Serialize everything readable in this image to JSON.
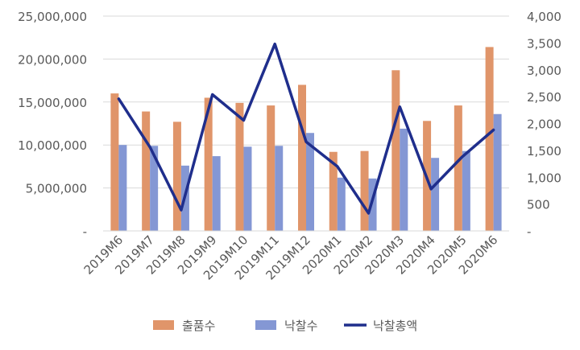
{
  "chart_data": {
    "type": "bar",
    "title": "",
    "xlabel": "",
    "ylabel": "",
    "categories": [
      "2019M6",
      "2019M7",
      "2019M8",
      "2019M9",
      "2019M10",
      "2019M11",
      "2019M12",
      "2020M1",
      "2020M2",
      "2020M3",
      "2020M4",
      "2020M5",
      "2020M6"
    ],
    "ylim": [
      0,
      25000000
    ],
    "y2lim": [
      0,
      4000
    ],
    "y_ticks": [
      "-",
      "5,000,000",
      "10,000,000",
      "15,000,000",
      "20,000,000",
      "25,000,000"
    ],
    "y2_ticks": [
      "-",
      "500",
      "1,000",
      "1,500",
      "2,000",
      "2,500",
      "3,000",
      "3,500",
      "4,000"
    ],
    "series": [
      {
        "name": "출품수",
        "type": "bar",
        "axis": "left",
        "color": "#E0956A",
        "values": [
          16000000,
          13900000,
          12700000,
          15500000,
          14900000,
          14600000,
          17000000,
          9200000,
          9300000,
          18700000,
          12800000,
          14600000,
          21400000
        ]
      },
      {
        "name": "낙찰수",
        "type": "bar",
        "axis": "left",
        "color": "#8497D4",
        "values": [
          10000000,
          9900000,
          7600000,
          8700000,
          9800000,
          9900000,
          11400000,
          6200000,
          6100000,
          11900000,
          8500000,
          9300000,
          13600000
        ]
      },
      {
        "name": "낙찰총액",
        "type": "line",
        "axis": "right",
        "color": "#1F2E8C",
        "values": [
          2460,
          1560,
          390,
          2540,
          2060,
          3480,
          1660,
          1200,
          330,
          2310,
          780,
          1380,
          1880
        ]
      }
    ],
    "legend": {
      "position": "bottom"
    },
    "grid": true
  }
}
